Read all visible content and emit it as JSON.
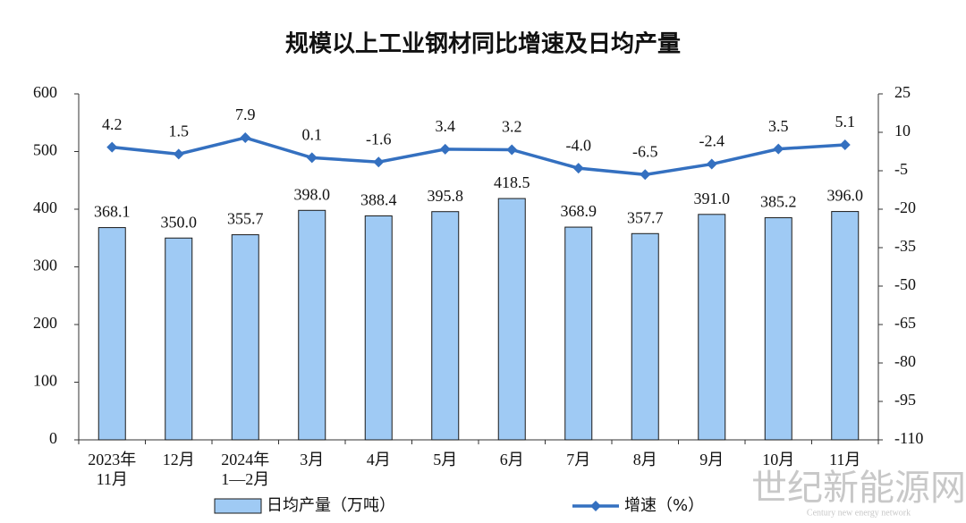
{
  "chart_data": {
    "type": "bar",
    "title": "规模以上工业钢材同比增速及日均产量",
    "categories": [
      "2023年\n11月",
      "12月",
      "2024年\n1—2月",
      "3月",
      "4月",
      "5月",
      "6月",
      "7月",
      "8月",
      "9月",
      "10月",
      "11月"
    ],
    "series": [
      {
        "name": "日均产量（万吨）",
        "type": "bar",
        "color": "#9fcaf4",
        "values": [
          368.1,
          350.0,
          355.7,
          398.0,
          388.4,
          395.8,
          418.5,
          368.9,
          357.7,
          391.0,
          385.2,
          396.0
        ],
        "value_labels": [
          "368.1",
          "350.0",
          "355.7",
          "398.0",
          "388.4",
          "395.8",
          "418.5",
          "368.9",
          "357.7",
          "391.0",
          "385.2",
          "396.0"
        ]
      },
      {
        "name": "增速（%）",
        "type": "line",
        "axis": "y2",
        "color": "#3470c0",
        "values": [
          4.2,
          1.5,
          7.9,
          0.1,
          -1.6,
          3.4,
          3.2,
          -4.0,
          -6.5,
          -2.4,
          3.5,
          5.1
        ],
        "value_labels": [
          "4.2",
          "1.5",
          "7.9",
          "0.1",
          "-1.6",
          "3.4",
          "3.2",
          "-4.0",
          "-6.5",
          "-2.4",
          "3.5",
          "5.1"
        ]
      }
    ],
    "ylim": [
      0,
      600
    ],
    "yticks": [
      0,
      100,
      200,
      300,
      400,
      500,
      600
    ],
    "y2lim": [
      -110,
      25
    ],
    "y2ticks": [
      -110,
      -95,
      -80,
      -65,
      -50,
      -35,
      -20,
      -5,
      10,
      25
    ],
    "watermark": "世纪新能源网",
    "watermark_subtitle": "Century new energy network"
  }
}
